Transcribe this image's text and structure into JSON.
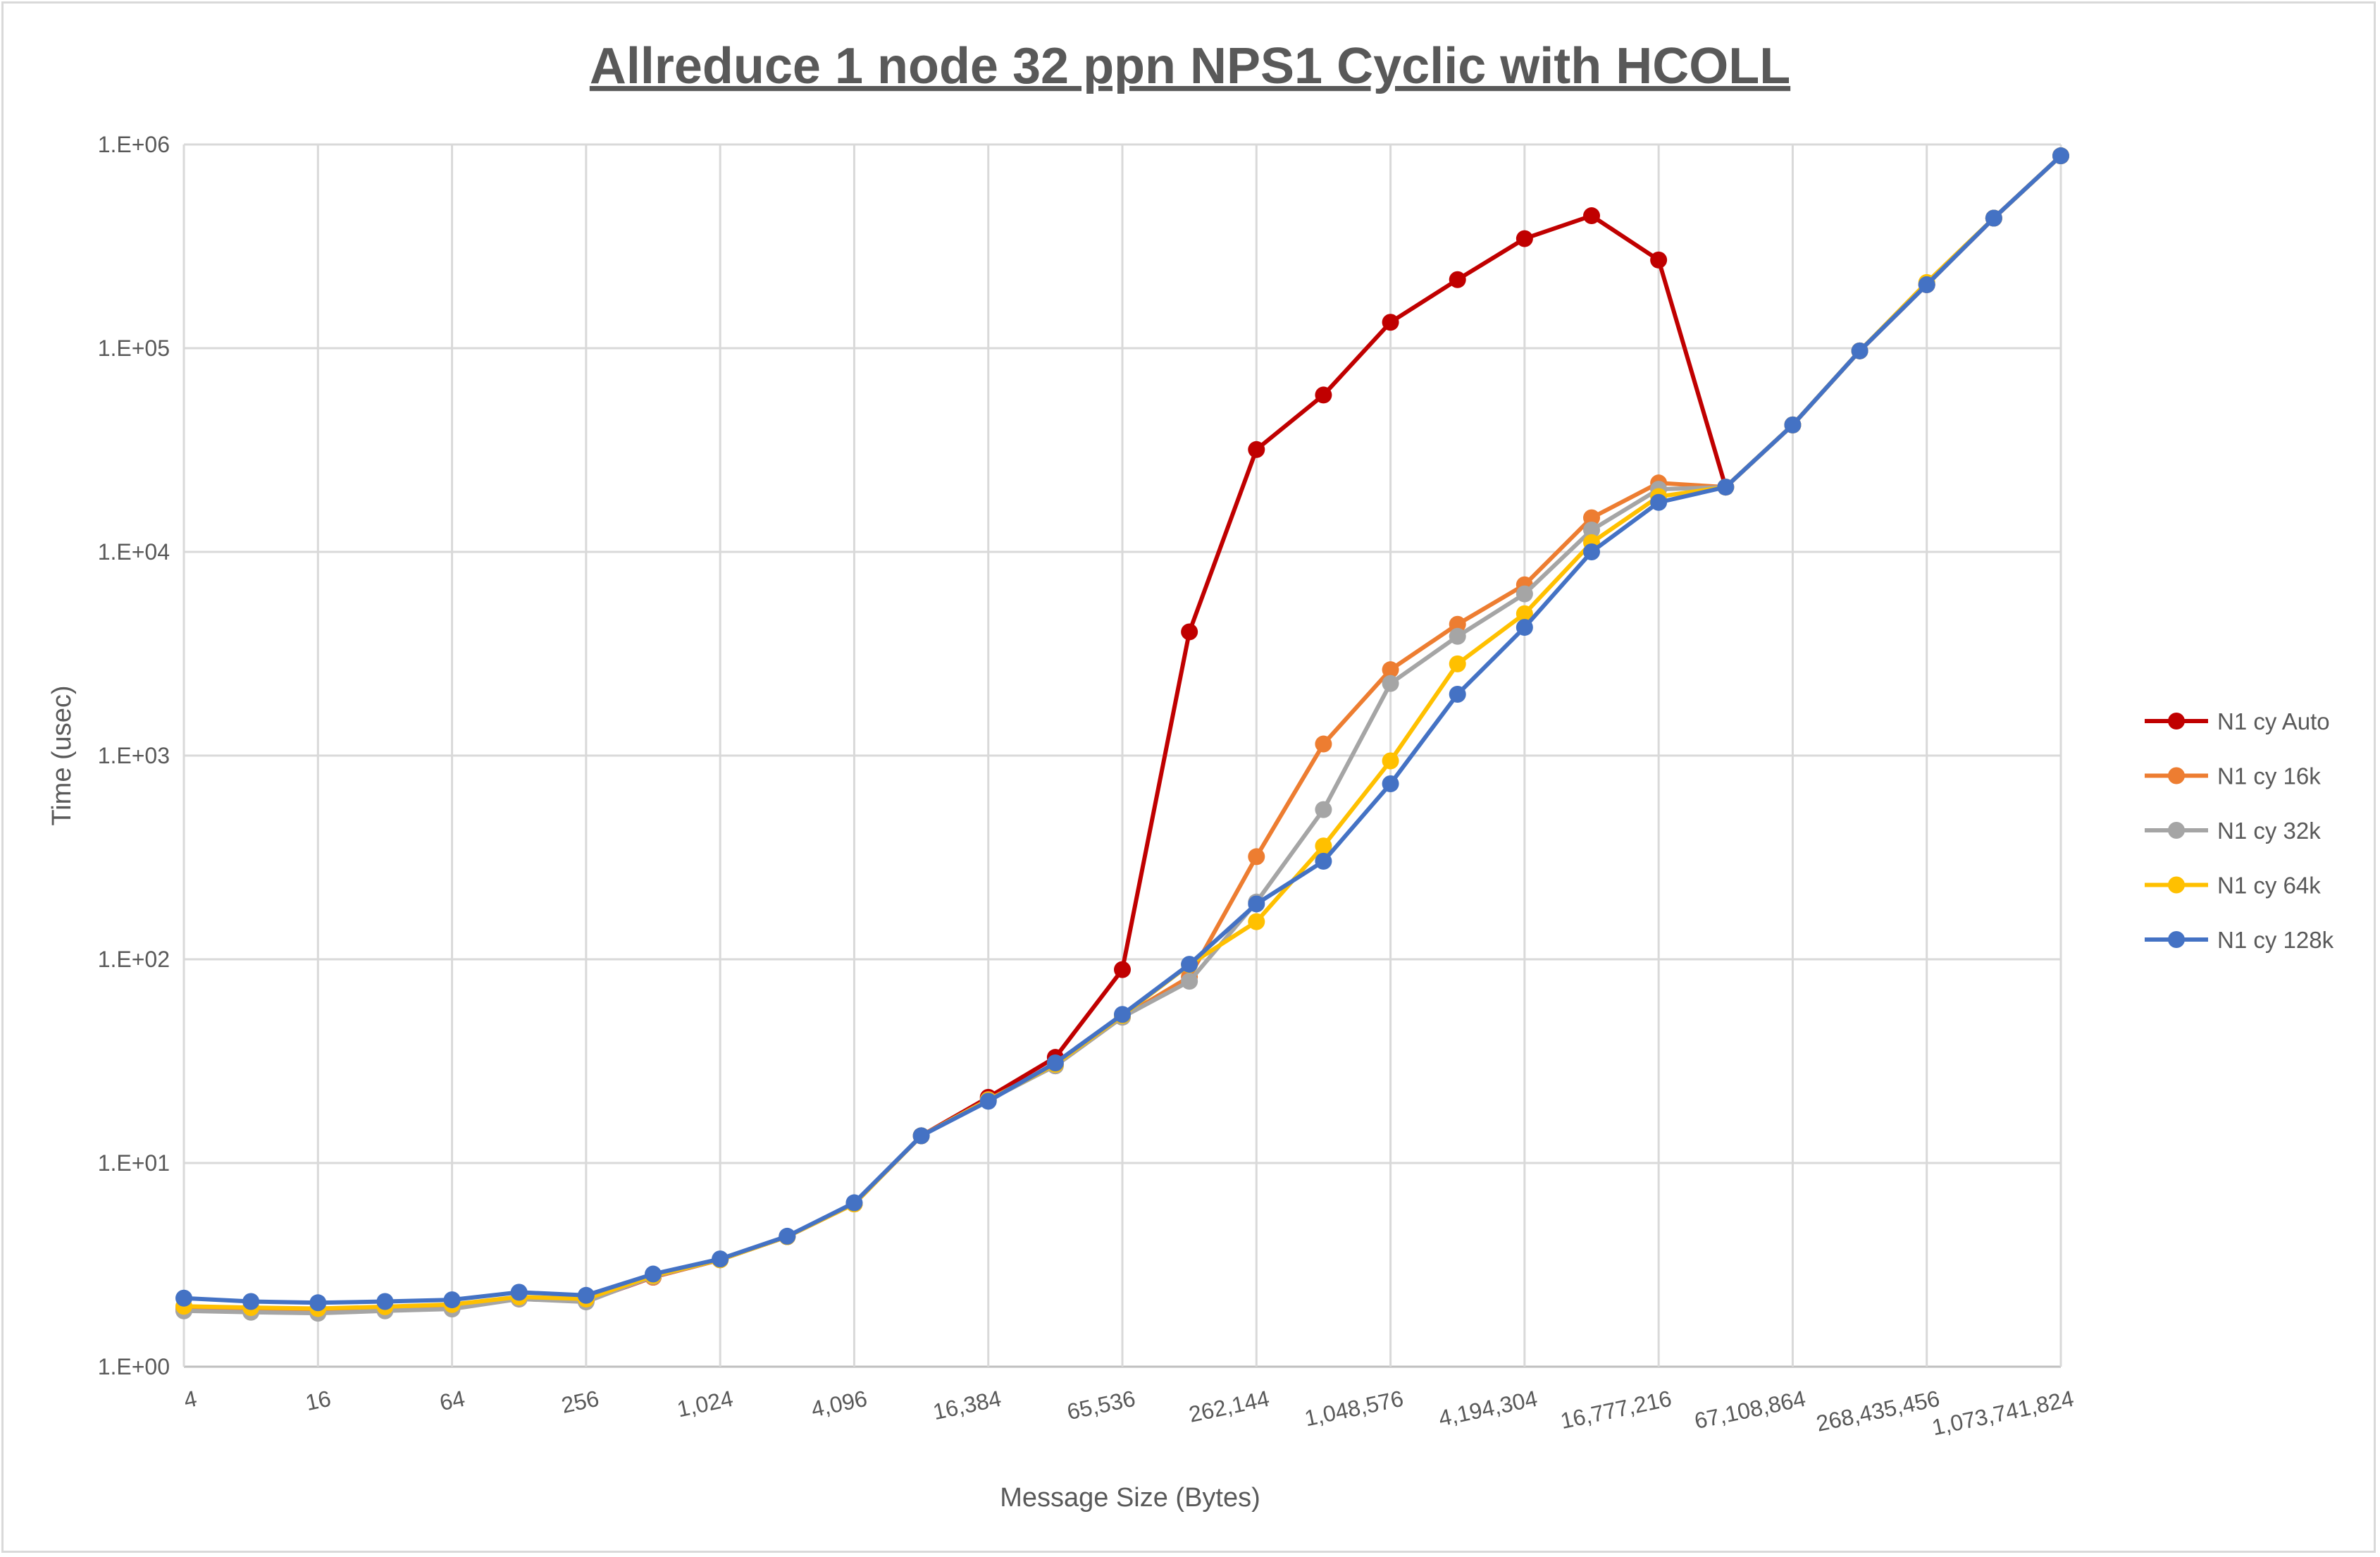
{
  "chart_data": {
    "type": "line",
    "title": "Allreduce 1 node 32 ppn NPS1 Cyclic with HCOLL",
    "xlabel": "Message Size (Bytes)",
    "ylabel": "Time (usec)",
    "y_scale": "log",
    "ylim": [
      1,
      1000000
    ],
    "y_ticks": [
      "1.E+00",
      "1.E+01",
      "1.E+02",
      "1.E+03",
      "1.E+04",
      "1.E+05",
      "1.E+06"
    ],
    "x": [
      4,
      8,
      16,
      32,
      64,
      128,
      256,
      512,
      1024,
      2048,
      4096,
      8192,
      16384,
      32768,
      65536,
      131072,
      262144,
      524288,
      1048576,
      2097152,
      4194304,
      8388608,
      16777216,
      33554432,
      67108864,
      134217728,
      268435456,
      536870912,
      1073741824
    ],
    "x_tick_labels": [
      "4",
      "16",
      "64",
      "256",
      "1,024",
      "4,096",
      "16,384",
      "65,536",
      "262,144",
      "1,048,576",
      "4,194,304",
      "16,777,216",
      "67,108,864",
      "268,435,456",
      "1,073,741,824"
    ],
    "grid": true,
    "legend_position": "right",
    "series": [
      {
        "name": "N1 cy Auto",
        "color": "#c00000",
        "values": [
          1.89,
          1.87,
          1.85,
          1.9,
          1.95,
          2.15,
          2.1,
          2.75,
          3.35,
          4.35,
          6.3,
          13.6,
          21,
          33,
          89,
          4050,
          31800,
          58900,
          134000,
          217000,
          345000,
          447000,
          271000,
          20800,
          42000,
          97000,
          205000,
          435000,
          880000
        ]
      },
      {
        "name": "N1 cy 16k",
        "color": "#ed7d31",
        "values": [
          1.95,
          1.92,
          1.9,
          1.94,
          1.98,
          2.18,
          2.12,
          2.75,
          3.35,
          4.35,
          6.3,
          13.6,
          20.5,
          30,
          52,
          82,
          319,
          1140,
          2640,
          4410,
          6890,
          14700,
          21800,
          20800,
          42000,
          97000,
          205000,
          435000,
          880000
        ]
      },
      {
        "name": "N1 cy 32k",
        "color": "#a5a5a5",
        "values": [
          1.88,
          1.85,
          1.83,
          1.88,
          1.92,
          2.15,
          2.08,
          2.78,
          3.35,
          4.35,
          6.3,
          13.6,
          20.3,
          30,
          52,
          78,
          191,
          543,
          2260,
          3850,
          6220,
          12800,
          20300,
          20800,
          42000,
          97000,
          205000,
          435000,
          880000
        ]
      },
      {
        "name": "N1 cy 64k",
        "color": "#ffc000",
        "values": [
          1.98,
          1.95,
          1.93,
          1.97,
          2.02,
          2.2,
          2.15,
          2.8,
          3.35,
          4.35,
          6.3,
          13.6,
          20.3,
          30.5,
          53,
          94,
          153,
          360,
          942,
          2820,
          4970,
          11100,
          18700,
          20800,
          42000,
          97000,
          210000,
          435000,
          880000
        ]
      },
      {
        "name": "N1 cy 128k",
        "color": "#4472c4",
        "values": [
          2.17,
          2.09,
          2.06,
          2.09,
          2.13,
          2.32,
          2.24,
          2.85,
          3.38,
          4.37,
          6.38,
          13.6,
          20.1,
          31,
          53.6,
          94.5,
          187,
          303,
          727,
          2000,
          4260,
          10000,
          17500,
          20800,
          42000,
          97000,
          205000,
          435000,
          880000
        ]
      }
    ]
  }
}
